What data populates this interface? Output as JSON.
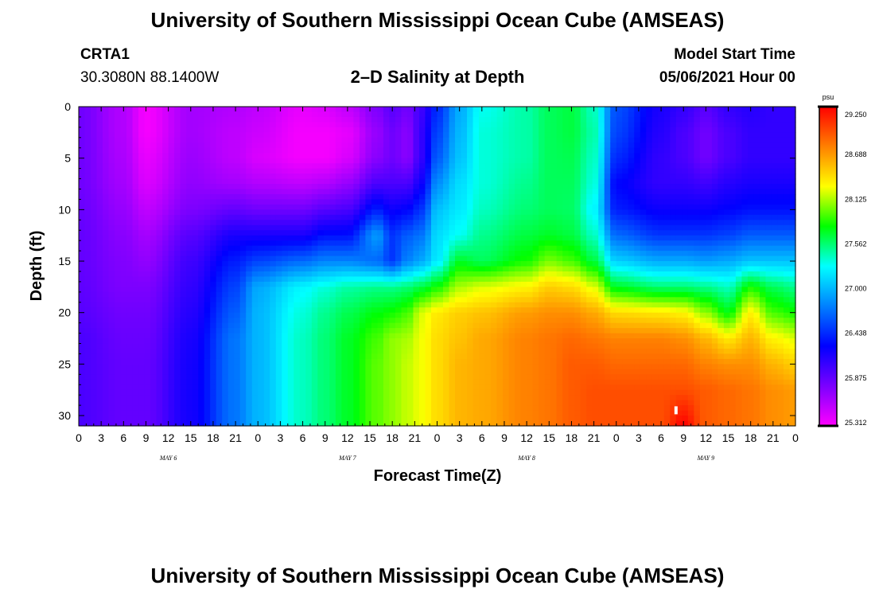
{
  "header": {
    "title": "University of Southern Mississippi Ocean Cube (AMSEAS)",
    "station": "CRTA1",
    "coords": "30.3080N  88.1400W",
    "subtitle": "2–D Salinity at Depth",
    "start_label": "Model Start Time",
    "start_value": "05/06/2021 Hour 00"
  },
  "footer": {
    "title": "University of Southern Mississippi Ocean Cube (AMSEAS)"
  },
  "chart_data": {
    "type": "heatmap",
    "title": "2–D Salinity at Depth",
    "xlabel": "Forecast Time(Z)",
    "ylabel": "Depth (ft)",
    "x_unit": "hours from model start",
    "xlim": [
      0,
      96
    ],
    "ylim": [
      0,
      31
    ],
    "x_tick_labels": [
      "0",
      "3",
      "6",
      "9",
      "12",
      "15",
      "18",
      "21",
      "0",
      "3",
      "6",
      "9",
      "12",
      "15",
      "18",
      "21",
      "0",
      "3",
      "6",
      "9",
      "12",
      "15",
      "18",
      "21",
      "0",
      "3",
      "6",
      "9",
      "12",
      "15",
      "18",
      "21",
      "0"
    ],
    "y_ticks": [
      0,
      5,
      10,
      15,
      20,
      25,
      30
    ],
    "day_labels": [
      {
        "text": "MAY 6",
        "hour": 12
      },
      {
        "text": "MAY 7",
        "hour": 36
      },
      {
        "text": "MAY 8",
        "hour": 60
      },
      {
        "text": "MAY 9",
        "hour": 84
      }
    ],
    "colorbar": {
      "unit": "psu",
      "ticks": [
        "29.250",
        "28.688",
        "28.125",
        "27.562",
        "27.000",
        "26.438",
        "25.875",
        "25.312"
      ],
      "vmin": 25.312,
      "vmax": 29.25
    },
    "depth_profile_ft": [
      0,
      2.5,
      5,
      7.5,
      10,
      12.5,
      15,
      17.5,
      20,
      22.5,
      25,
      27.5,
      31
    ],
    "profiles": [
      {
        "hour": 0,
        "values": [
          25.85,
          25.85,
          25.85,
          25.85,
          25.88,
          25.9,
          25.9,
          25.92,
          25.95,
          26.0,
          26.0,
          26.0,
          26.0
        ]
      },
      {
        "hour": 6,
        "values": [
          25.6,
          25.6,
          25.62,
          25.65,
          25.7,
          25.75,
          25.78,
          25.8,
          25.85,
          25.88,
          25.9,
          25.9,
          25.9
        ]
      },
      {
        "hour": 9,
        "values": [
          25.35,
          25.35,
          25.4,
          25.45,
          25.55,
          25.65,
          25.72,
          25.8,
          25.85,
          25.88,
          25.9,
          25.9,
          25.9
        ]
      },
      {
        "hour": 15,
        "values": [
          25.65,
          25.65,
          25.68,
          25.72,
          25.8,
          25.95,
          26.05,
          26.1,
          26.15,
          26.2,
          26.22,
          26.22,
          26.22
        ]
      },
      {
        "hour": 21,
        "values": [
          25.6,
          25.55,
          25.55,
          25.65,
          25.9,
          26.2,
          26.4,
          26.55,
          26.65,
          26.75,
          26.75,
          26.75,
          26.75
        ]
      },
      {
        "hour": 24,
        "values": [
          25.55,
          25.5,
          25.45,
          25.6,
          25.85,
          26.2,
          26.55,
          26.95,
          27.0,
          27.0,
          27.0,
          27.0,
          27.0
        ]
      },
      {
        "hour": 30,
        "values": [
          25.4,
          25.35,
          25.35,
          25.55,
          25.85,
          26.2,
          26.7,
          27.25,
          27.35,
          27.4,
          27.4,
          27.4,
          27.4
        ]
      },
      {
        "hour": 33,
        "values": [
          25.45,
          25.35,
          25.35,
          25.6,
          25.95,
          26.35,
          26.8,
          27.35,
          27.5,
          27.55,
          27.55,
          27.55,
          27.55
        ]
      },
      {
        "hour": 36,
        "values": [
          25.55,
          25.4,
          25.45,
          25.7,
          26.0,
          26.35,
          26.8,
          27.45,
          27.62,
          27.7,
          27.7,
          27.7,
          27.7
        ]
      },
      {
        "hour": 40,
        "values": [
          25.8,
          25.7,
          25.75,
          26.0,
          26.4,
          26.9,
          26.7,
          27.5,
          27.75,
          27.9,
          27.95,
          27.95,
          27.95
        ]
      },
      {
        "hour": 42,
        "values": [
          25.95,
          25.85,
          25.85,
          26.0,
          26.25,
          26.5,
          26.5,
          27.5,
          27.8,
          28.05,
          28.05,
          28.05,
          28.05
        ]
      },
      {
        "hour": 44,
        "values": [
          25.85,
          25.75,
          25.75,
          26.0,
          26.3,
          26.65,
          26.8,
          27.55,
          27.9,
          28.1,
          28.15,
          28.15,
          28.15
        ]
      },
      {
        "hour": 46,
        "values": [
          26.05,
          26.1,
          26.1,
          26.25,
          26.5,
          26.75,
          26.95,
          27.65,
          28.2,
          28.25,
          28.25,
          28.25,
          28.25
        ]
      },
      {
        "hour": 48,
        "values": [
          26.45,
          26.55,
          26.65,
          26.85,
          27.05,
          27.15,
          27.2,
          27.8,
          28.35,
          28.4,
          28.4,
          28.4,
          28.4
        ]
      },
      {
        "hour": 51,
        "values": [
          26.95,
          27.0,
          27.05,
          27.15,
          27.2,
          27.3,
          27.7,
          28.1,
          28.45,
          28.5,
          28.55,
          28.55,
          28.55
        ]
      },
      {
        "hour": 54,
        "values": [
          27.3,
          27.35,
          27.35,
          27.35,
          27.4,
          27.5,
          27.6,
          28.2,
          28.5,
          28.6,
          28.6,
          28.6,
          28.6
        ]
      },
      {
        "hour": 60,
        "values": [
          27.45,
          27.45,
          27.45,
          27.5,
          27.55,
          27.65,
          27.8,
          28.3,
          28.65,
          28.75,
          28.75,
          28.75,
          28.75
        ]
      },
      {
        "hour": 63,
        "values": [
          27.6,
          27.6,
          27.6,
          27.6,
          27.6,
          27.7,
          28.0,
          28.45,
          28.7,
          28.8,
          28.8,
          28.8,
          28.8
        ]
      },
      {
        "hour": 66,
        "values": [
          27.65,
          27.65,
          27.62,
          27.6,
          27.58,
          27.65,
          27.9,
          28.4,
          28.7,
          28.85,
          28.9,
          28.9,
          28.9
        ]
      },
      {
        "hour": 69,
        "values": [
          27.4,
          27.45,
          27.4,
          27.35,
          27.25,
          27.4,
          27.65,
          28.2,
          28.6,
          28.8,
          28.9,
          28.95,
          28.95
        ]
      },
      {
        "hour": 72,
        "values": [
          26.6,
          26.55,
          26.45,
          26.3,
          26.4,
          26.7,
          27.1,
          27.7,
          28.4,
          28.75,
          28.85,
          28.95,
          28.95
        ]
      },
      {
        "hour": 78,
        "values": [
          26.2,
          26.15,
          26.1,
          26.1,
          26.25,
          26.5,
          26.95,
          27.55,
          28.35,
          28.75,
          28.85,
          28.95,
          28.95
        ]
      },
      {
        "hour": 81,
        "values": [
          26.1,
          26.0,
          26.0,
          26.1,
          26.25,
          26.5,
          26.95,
          27.55,
          28.3,
          28.7,
          28.85,
          28.95,
          29.25
        ]
      },
      {
        "hour": 84,
        "values": [
          25.95,
          25.85,
          25.85,
          26.05,
          26.25,
          26.5,
          26.9,
          27.5,
          28.05,
          28.55,
          28.75,
          28.9,
          28.9
        ]
      },
      {
        "hour": 87,
        "values": [
          26.1,
          26.0,
          26.0,
          26.15,
          26.3,
          26.55,
          26.95,
          27.4,
          27.75,
          28.35,
          28.7,
          28.85,
          28.85
        ]
      },
      {
        "hour": 90,
        "values": [
          26.15,
          26.1,
          26.1,
          26.2,
          26.35,
          26.65,
          27.05,
          27.8,
          28.3,
          28.55,
          28.7,
          28.8,
          28.8
        ]
      },
      {
        "hour": 93,
        "values": [
          26.1,
          26.1,
          26.1,
          26.2,
          26.35,
          26.65,
          27.05,
          27.6,
          27.9,
          28.3,
          28.55,
          28.7,
          28.7
        ]
      },
      {
        "hour": 96,
        "values": [
          26.1,
          26.1,
          26.1,
          26.2,
          26.35,
          26.65,
          27.05,
          27.5,
          27.8,
          28.2,
          28.45,
          28.65,
          28.65
        ]
      }
    ]
  }
}
